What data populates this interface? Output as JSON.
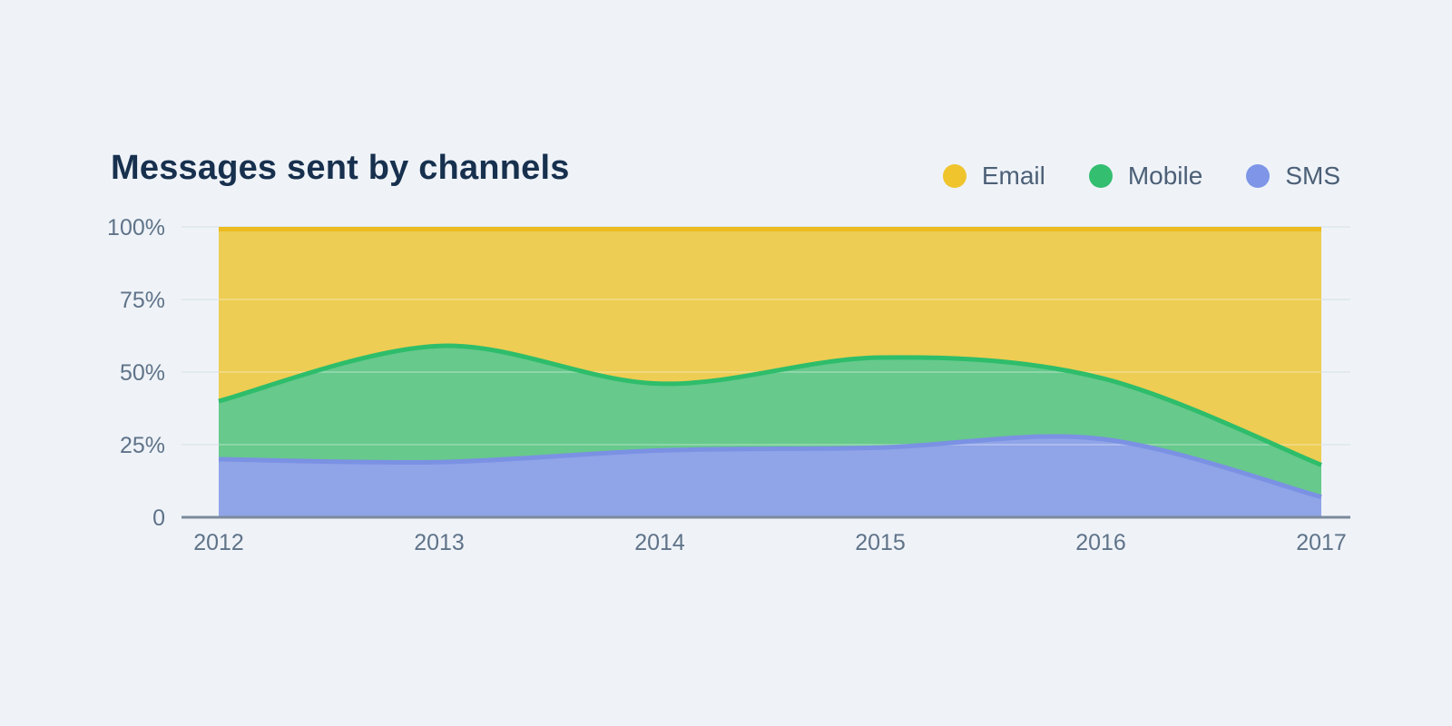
{
  "colors": {
    "background": "#EFF3F8",
    "title_text": "#17304E",
    "axis_text": "#5F7389",
    "legend_text": "#4C6077",
    "axis_line": "#7B8B9C",
    "gridline": "#E2E9EF"
  },
  "header": {
    "title": "Messages sent by channels"
  },
  "chart_data": {
    "type": "area",
    "stacked": true,
    "unit": "percent",
    "title": "Messages sent by channels",
    "categories": [
      "2012",
      "2013",
      "2014",
      "2015",
      "2016",
      "2017"
    ],
    "y_axis": {
      "min": 0,
      "max": 100,
      "tick_values": [
        100,
        75,
        50,
        25,
        0
      ],
      "tick_labels": [
        "100%",
        "75%",
        "50%",
        "25%",
        "0"
      ]
    },
    "x_axis": {
      "label": "",
      "gridlines": false
    },
    "grid": "horizontal",
    "legend_position": "top-right",
    "stack_order_bottom_to_top": [
      "SMS",
      "Mobile",
      "Email"
    ],
    "series": [
      {
        "name": "Email",
        "legend_color": "#EFC42D",
        "fill": "#EDCD53",
        "stroke": "#EBBB20",
        "values": [
          60,
          41,
          54,
          45,
          52,
          82
        ]
      },
      {
        "name": "Mobile",
        "legend_color": "#33BE70",
        "fill": "#67C98C",
        "stroke": "#2EBD6B",
        "values": [
          20,
          40,
          23,
          31,
          21,
          11
        ]
      },
      {
        "name": "SMS",
        "legend_color": "#7E95E8",
        "fill": "#90A4E8",
        "stroke": "#7B91E3",
        "values": [
          20,
          19,
          23,
          24,
          27,
          7
        ]
      }
    ]
  }
}
